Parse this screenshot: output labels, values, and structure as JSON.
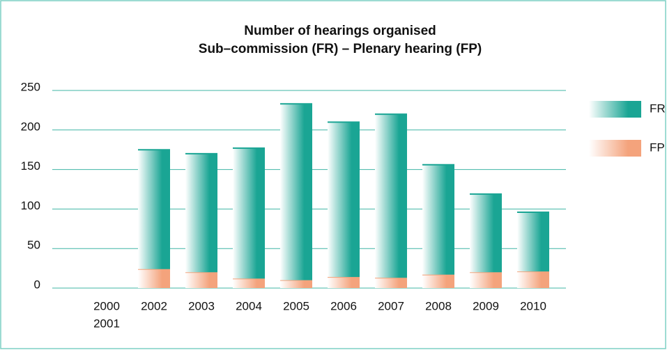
{
  "chart_data": {
    "type": "stacked-bar",
    "title": [
      "Number of hearings organised",
      "Sub–commission (FR) – Plenary hearing (FP)"
    ],
    "categories": [
      [
        "2000",
        "2001"
      ],
      "2002",
      "2003",
      "2004",
      "2005",
      "2006",
      "2007",
      "2008",
      "2009",
      "2010"
    ],
    "series": [
      {
        "name": "FP",
        "color": "#f4a37c",
        "values": [
          null,
          24,
          20,
          12,
          10,
          14,
          13,
          17,
          20,
          21
        ]
      },
      {
        "name": "FR",
        "color": "#1aa594",
        "values": [
          null,
          151,
          150,
          165,
          223,
          196,
          207,
          139,
          99,
          75
        ]
      }
    ],
    "legend_order": [
      "FR",
      "FP"
    ],
    "ylim": [
      0,
      250
    ],
    "yticks": [
      0,
      50,
      100,
      150,
      200,
      250
    ],
    "grid": true
  }
}
